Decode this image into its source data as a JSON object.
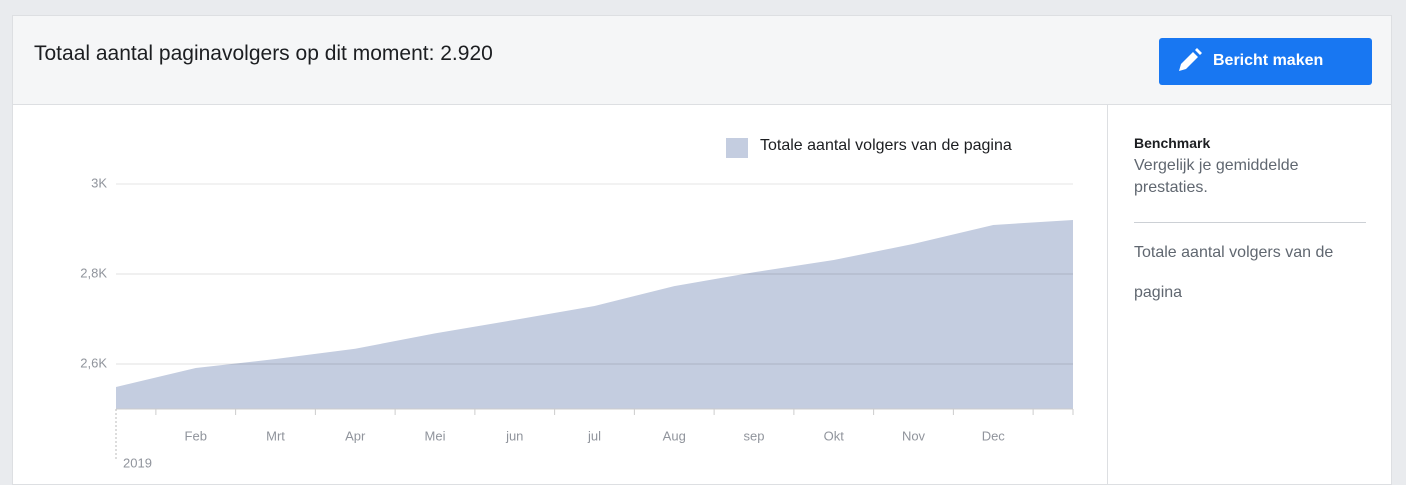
{
  "header": {
    "title": "Totaal aantal paginavolgers op dit moment: 2.920",
    "button": "Bericht maken"
  },
  "side": {
    "heading": "Benchmark",
    "description": "Vergelijk je gemiddelde prestaties.",
    "metric": "Totale aantal volgers van de pagina"
  },
  "chart_data": {
    "type": "area",
    "categories": [
      null,
      "Feb",
      "Mrt",
      "Apr",
      "Mei",
      "jun",
      "jul",
      "Aug",
      "sep",
      "Okt",
      "Nov",
      "Dec",
      null
    ],
    "year_label": "2019",
    "series": [
      {
        "name": "Totale aantal volgers van de pagina",
        "color": "#c4cde0",
        "values": [
          2549,
          2591,
          2611,
          2634,
          2668,
          2698,
          2729,
          2773,
          2804,
          2831,
          2867,
          2909,
          2920
        ]
      }
    ],
    "ylim": [
      2500,
      3000
    ],
    "yticks": [
      {
        "value": 2600,
        "label": "2,6K"
      },
      {
        "value": 2800,
        "label": "2,8K"
      },
      {
        "value": 3000,
        "label": "3K"
      }
    ],
    "grid": true
  }
}
